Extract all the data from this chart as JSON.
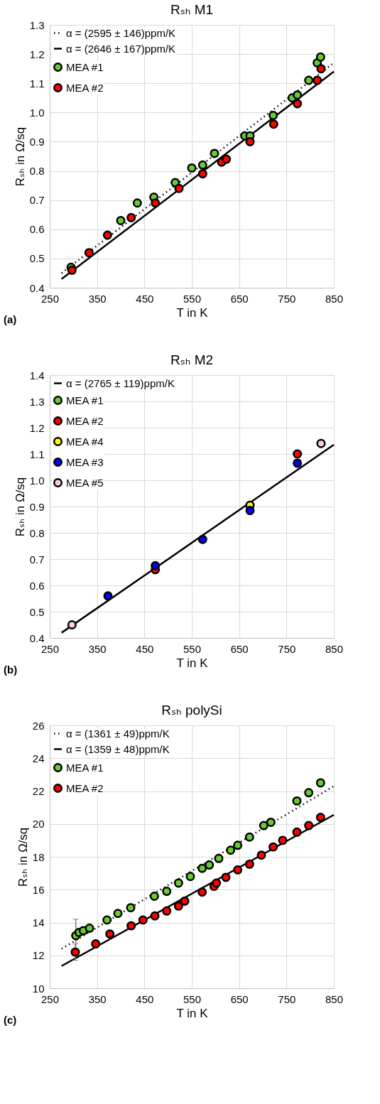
{
  "chart_data": [
    {
      "type": "scatter",
      "title": "Rₛₕ M1",
      "xlabel": "T in K",
      "ylabel": "Rₛₕ in Ω/sq",
      "xlim": [
        250,
        850
      ],
      "ylim": [
        0.4,
        1.3
      ],
      "xticks": [
        250,
        350,
        450,
        550,
        650,
        750,
        850
      ],
      "yticks": [
        0.4,
        0.5,
        0.6,
        0.7,
        0.8,
        0.9,
        {
          "value": 1,
          "label": "1.0"
        },
        1.1,
        1.2,
        1.3
      ],
      "grid": true,
      "legend": "top left",
      "marker": "circle",
      "annotations": [
        "(a)"
      ],
      "series": [
        {
          "name": "α = (2595 ± 146)ppm/K",
          "type": "line",
          "marker": "none",
          "line_style": "dotted",
          "color": "#000000",
          "x": [
            275,
            850
          ],
          "values": [
            0.45,
            1.17
          ]
        },
        {
          "name": "α = (2646 ± 167)ppm/K",
          "type": "line",
          "marker": "none",
          "line_style": "solid",
          "color": "#000000",
          "x": [
            275,
            850
          ],
          "values": [
            0.43,
            1.14
          ]
        },
        {
          "name": "MEA #1",
          "type": "scatter",
          "color": "#66cc33",
          "x": [
            295,
            400,
            435,
            470,
            515,
            550,
            573,
            598,
            662,
            673,
            722,
            762,
            773,
            797,
            815,
            822
          ],
          "values": [
            0.47,
            0.63,
            0.69,
            0.71,
            0.76,
            0.81,
            0.82,
            0.86,
            0.92,
            0.92,
            0.99,
            1.05,
            1.06,
            1.11,
            1.17,
            1.19
          ]
        },
        {
          "name": "MEA #2",
          "type": "scatter",
          "color": "#ff0000",
          "x": [
            297,
            333,
            372,
            422,
            473,
            523,
            573,
            613,
            623,
            673,
            723,
            773,
            815,
            823
          ],
          "values": [
            0.46,
            0.52,
            0.58,
            0.64,
            0.69,
            0.74,
            0.79,
            0.83,
            0.84,
            0.9,
            0.96,
            1.03,
            1.11,
            1.15
          ]
        }
      ]
    },
    {
      "type": "scatter",
      "title": "Rₛₕ M2",
      "xlabel": "T in K",
      "ylabel": "Rₛₕ in Ω/sq",
      "xlim": [
        250,
        850
      ],
      "ylim": [
        0.4,
        1.4
      ],
      "xticks": [
        250,
        350,
        450,
        550,
        650,
        750,
        850
      ],
      "yticks": [
        0.4,
        0.5,
        0.6,
        0.7,
        0.8,
        0.9,
        {
          "value": 1,
          "label": "1.0"
        },
        1.1,
        1.2,
        1.3,
        1.4
      ],
      "grid": true,
      "legend": "top left",
      "marker": "circle",
      "annotations": [
        "(b)"
      ],
      "series": [
        {
          "name": "α = (2765 ± 119)ppm/K",
          "type": "line",
          "marker": "none",
          "line_style": "solid",
          "color": "#000000",
          "x": [
            275,
            850
          ],
          "values": [
            0.42,
            1.135
          ]
        },
        {
          "name": "MEA #1",
          "type": "scatter",
          "color": "#66cc33"
        },
        {
          "name": "MEA #2",
          "type": "scatter",
          "color": "#ff0000",
          "x": [
            473,
            773
          ],
          "values": [
            0.66,
            1.1
          ]
        },
        {
          "name": "MEA #4",
          "type": "scatter",
          "color": "#ffff00",
          "x": [
            673
          ],
          "values": [
            0.905
          ]
        },
        {
          "name": "MEA #3",
          "type": "scatter",
          "color": "#0000ff",
          "x": [
            373,
            473,
            573,
            673,
            773
          ],
          "values": [
            0.56,
            0.675,
            0.775,
            0.885,
            1.065
          ]
        },
        {
          "name": "MEA #5",
          "type": "scatter",
          "color": "#ffccdd",
          "x": [
            297,
            823
          ],
          "values": [
            0.45,
            1.14
          ]
        }
      ]
    },
    {
      "type": "scatter",
      "title": "Rₛₕ polySi",
      "xlabel": "T in K",
      "ylabel": "Rₛₕ in Ω/sq",
      "xlim": [
        250,
        850
      ],
      "ylim": [
        10,
        26
      ],
      "xticks": [
        250,
        350,
        450,
        550,
        650,
        750,
        850
      ],
      "yticks": [
        10,
        12,
        14,
        16,
        18,
        20,
        22,
        24,
        26
      ],
      "grid": true,
      "legend": "top left",
      "marker": "circle",
      "annotations": [
        "(c)"
      ],
      "series": [
        {
          "name": "α = (1361 ± 49)ppm/K",
          "type": "line",
          "marker": "none",
          "line_style": "dotted",
          "color": "#000000",
          "x": [
            275,
            850
          ],
          "values": [
            12.4,
            22.3
          ]
        },
        {
          "name": "α = (1359 ± 48)ppm/K",
          "type": "line",
          "marker": "none",
          "line_style": "solid",
          "color": "#000000",
          "x": [
            275,
            850
          ],
          "values": [
            11.35,
            20.55
          ]
        },
        {
          "name": "MEA #1",
          "type": "scatter",
          "color": "#66cc33",
          "x": [
            305,
            312,
            321,
            334,
            371,
            394,
            421,
            471,
            497,
            522,
            547,
            572,
            587,
            607,
            632,
            647,
            672,
            702,
            717,
            772,
            797,
            822
          ],
          "values": [
            13.2,
            13.4,
            13.5,
            13.65,
            14.15,
            14.55,
            14.9,
            15.6,
            15.9,
            16.4,
            16.8,
            17.3,
            17.5,
            17.9,
            18.4,
            18.7,
            19.2,
            19.9,
            20.1,
            21.4,
            21.9,
            22.5
          ],
          "errors": [
            1,
            null,
            null,
            null,
            null,
            null,
            null,
            null,
            null,
            null,
            null,
            null,
            null,
            null,
            null,
            null,
            null,
            null,
            null,
            null,
            null,
            null
          ]
        },
        {
          "name": "MEA #2",
          "type": "scatter",
          "color": "#ff0000",
          "x": [
            304,
            347,
            377,
            422,
            447,
            472,
            497,
            522,
            535,
            572,
            597,
            602,
            622,
            647,
            672,
            697,
            722,
            742,
            772,
            797,
            822
          ],
          "values": [
            12.2,
            12.7,
            13.3,
            13.8,
            14.15,
            14.4,
            14.7,
            15.0,
            15.3,
            15.85,
            16.2,
            16.4,
            16.75,
            17.2,
            17.55,
            18.1,
            18.6,
            19.0,
            19.5,
            19.9,
            20.4
          ],
          "errors": [
            0.5,
            null,
            null,
            null,
            null,
            null,
            null,
            null,
            null,
            null,
            null,
            null,
            null,
            null,
            null,
            null,
            null,
            null,
            null,
            null,
            null
          ]
        }
      ]
    }
  ]
}
